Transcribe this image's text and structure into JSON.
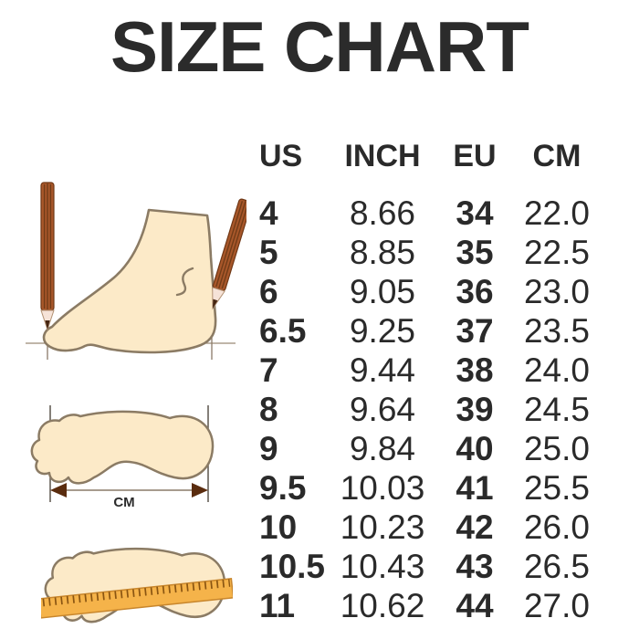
{
  "title": "SIZE CHART",
  "chart_data": {
    "type": "table",
    "title": "SIZE CHART",
    "columns": [
      "US",
      "INCH",
      "EU",
      "CM"
    ],
    "rows": [
      [
        "4",
        "8.66",
        "34",
        "22.0"
      ],
      [
        "5",
        "8.85",
        "35",
        "22.5"
      ],
      [
        "6",
        "9.05",
        "36",
        "23.0"
      ],
      [
        "6.5",
        "9.25",
        "37",
        "23.5"
      ],
      [
        "7",
        "9.44",
        "38",
        "24.0"
      ],
      [
        "8",
        "9.64",
        "39",
        "24.5"
      ],
      [
        "9",
        "9.84",
        "40",
        "25.0"
      ],
      [
        "9.5",
        "10.03",
        "41",
        "25.5"
      ],
      [
        "10",
        "10.23",
        "42",
        "26.0"
      ],
      [
        "10.5",
        "10.43",
        "43",
        "26.5"
      ],
      [
        "11",
        "10.62",
        "44",
        "27.0"
      ]
    ]
  },
  "illustrations": {
    "cm_label": "CM"
  },
  "colors": {
    "text": "#2a2a2a",
    "foot_fill": "#fceac8",
    "foot_outline": "#8b7b64",
    "pencil_body": "#a8572a",
    "pencil_lead": "#452511",
    "ruler": "#f5b34a",
    "arrowhead": "#5a2c0e"
  }
}
